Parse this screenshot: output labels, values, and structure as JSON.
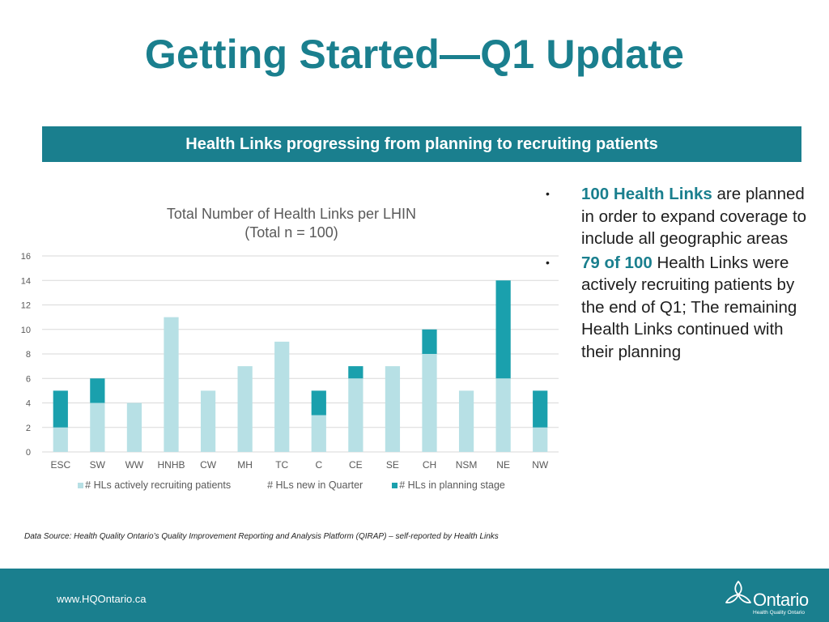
{
  "title": "Getting Started—Q1 Update",
  "banner": "Health Links progressing from planning to recruiting patients",
  "chart_data": {
    "type": "bar",
    "stacked": true,
    "title": [
      "Total Number of Health Links per LHIN",
      "(Total n = 100)"
    ],
    "xlabel": "",
    "ylabel": "",
    "ylim": [
      0,
      16
    ],
    "yticks": [
      0,
      2,
      4,
      6,
      8,
      10,
      12,
      14,
      16
    ],
    "grid": true,
    "legend_position": "bottom",
    "categories": [
      "ESC",
      "SW",
      "WW",
      "HNHB",
      "CW",
      "MH",
      "TC",
      "C",
      "CE",
      "SE",
      "CH",
      "NSM",
      "NE",
      "NW"
    ],
    "series": [
      {
        "name": "# HLs actively recruiting patients",
        "color": "#b7e0e5",
        "values": [
          2,
          4,
          4,
          11,
          5,
          7,
          9,
          3,
          6,
          7,
          8,
          5,
          6,
          2
        ]
      },
      {
        "name": "# HLs new in Quarter",
        "color": "#ffffff",
        "values": [
          0,
          0,
          0,
          0,
          0,
          0,
          0,
          0,
          0,
          0,
          0,
          0,
          0,
          0
        ]
      },
      {
        "name": "# HLs in planning stage",
        "color": "#1aa0ad",
        "values": [
          3,
          2,
          0,
          0,
          0,
          0,
          0,
          2,
          1,
          0,
          2,
          0,
          8,
          3
        ]
      }
    ]
  },
  "bullets": [
    {
      "marker": "•",
      "highlight": "100 Health Links",
      "rest": " are planned in order to expand coverage to include all geographic areas"
    },
    {
      "marker": "•",
      "highlight": "79 of 100",
      "rest": " Health Links were actively recruiting patients by the end of Q1; The remaining Health Links continued with their planning"
    }
  ],
  "source": "Data Source:  Health Quality Ontario’s Quality Improvement Reporting and Analysis Platform (QIRAP) – self-reported by Health Links",
  "footer": {
    "url": "www.HQOntario.ca",
    "logo_word": "Ontario",
    "logo_sub": "Health Quality Ontario",
    "logo_icon": "trillium-icon"
  }
}
